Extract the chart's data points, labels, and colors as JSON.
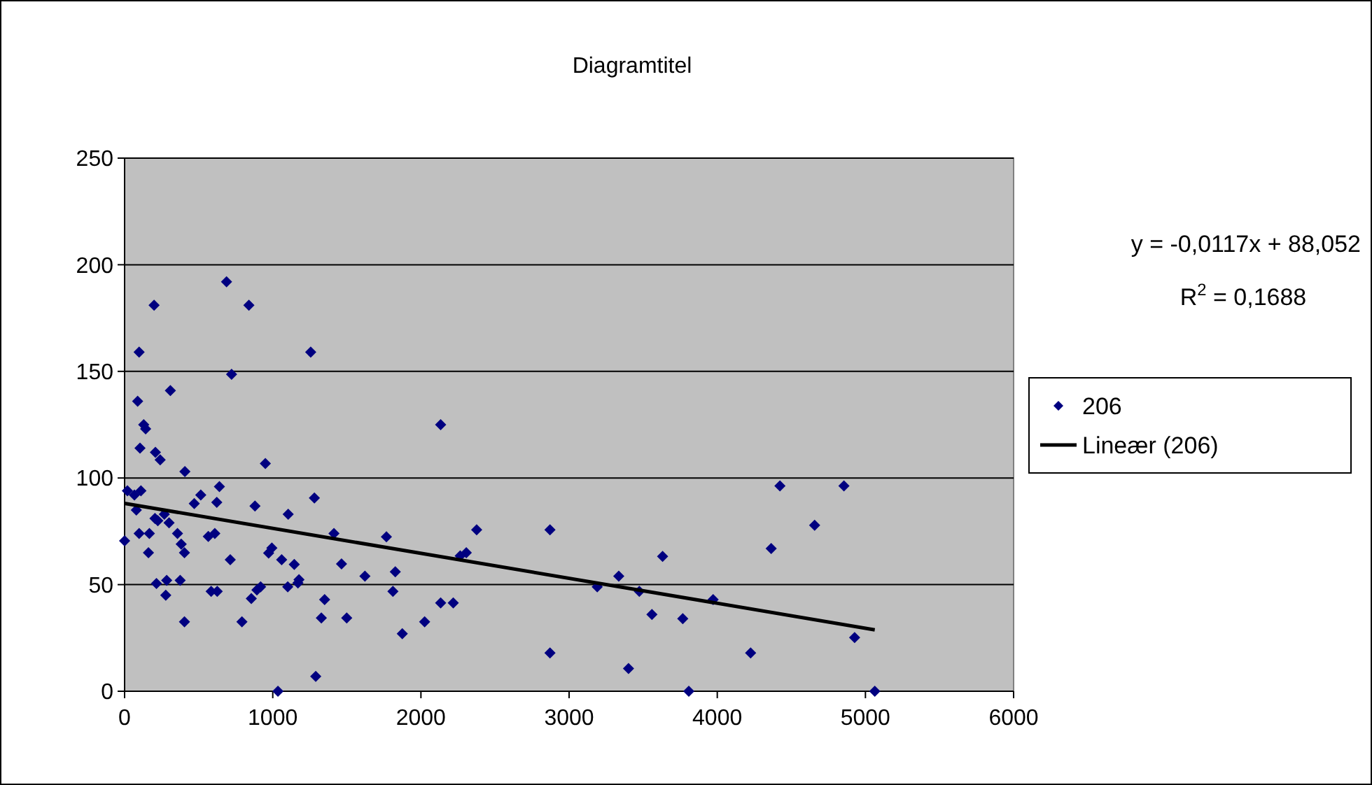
{
  "chart_data": {
    "type": "scatter",
    "title": "Diagramtitel",
    "xlim": [
      0,
      6000
    ],
    "xticks": [
      0,
      1000,
      2000,
      3000,
      4000,
      5000,
      6000
    ],
    "ylim": [
      0,
      250
    ],
    "yticks": [
      0,
      50,
      100,
      150,
      200,
      250
    ],
    "grid": "y",
    "legend": "right",
    "marker": "diamond",
    "annotations": [
      "y = -0,0117x + 88,052",
      "R$^{2}$ = 0,1688"
    ],
    "series": [
      {
        "name": "206",
        "color": "#000080",
        "x": [
          0,
          19,
          66,
          110,
          79,
          98,
          167,
          161,
          88,
          98,
          199,
          129,
          142,
          104,
          208,
          240,
          309,
          407,
          205,
          224,
          268,
          300,
          357,
          382,
          404,
          215,
          284,
          278,
          375,
          404,
          470,
          514,
          640,
          622,
          688,
          722,
          839,
          565,
          609,
          713,
          584,
          625,
          792,
          855,
          893,
          918,
          880,
          950,
          972,
          994,
          1035,
          1060,
          1101,
          1104,
          1145,
          1170,
          1177,
          1256,
          1281,
          1290,
          1328,
          1350,
          1413,
          1464,
          1499,
          1622,
          1767,
          1827,
          1811,
          1874,
          2025,
          2133,
          2133,
          2218,
          2265,
          2306,
          2376,
          2871,
          2871,
          3190,
          3335,
          3474,
          3401,
          3559,
          3631,
          3767,
          3808,
          3972,
          4225,
          4423,
          4855,
          4657,
          4364,
          4927,
          5063
        ],
        "values": [
          70.5,
          94,
          92,
          94,
          85,
          74,
          74,
          65,
          136,
          159,
          181,
          125,
          123,
          114,
          112,
          108.5,
          141,
          103,
          81,
          80,
          83,
          79,
          74,
          69,
          65,
          50.5,
          52,
          45,
          52,
          32.6,
          88,
          92,
          96,
          88.6,
          192,
          148.6,
          181,
          72.6,
          74,
          61.7,
          46.8,
          46.8,
          32.6,
          43.5,
          47.5,
          49,
          86.9,
          106.8,
          64.8,
          67.2,
          0,
          61.7,
          49,
          83,
          59.5,
          50.8,
          52.3,
          159,
          90.6,
          7,
          34.4,
          43,
          74,
          59.7,
          34.4,
          54,
          72.4,
          56,
          46.8,
          27,
          32.6,
          41.4,
          125,
          41.4,
          63.5,
          65,
          75.7,
          75.7,
          18,
          49,
          54,
          46.8,
          10.7,
          36,
          63.2,
          34,
          0,
          43,
          18,
          96.3,
          96.3,
          77.8,
          66.9,
          25.2,
          0
        ]
      },
      {
        "name": "Lineær (206)",
        "type": "line",
        "marker": "none",
        "color": "#000000",
        "x": [
          0,
          5063
        ],
        "values": [
          88.1,
          28.8
        ]
      }
    ]
  }
}
